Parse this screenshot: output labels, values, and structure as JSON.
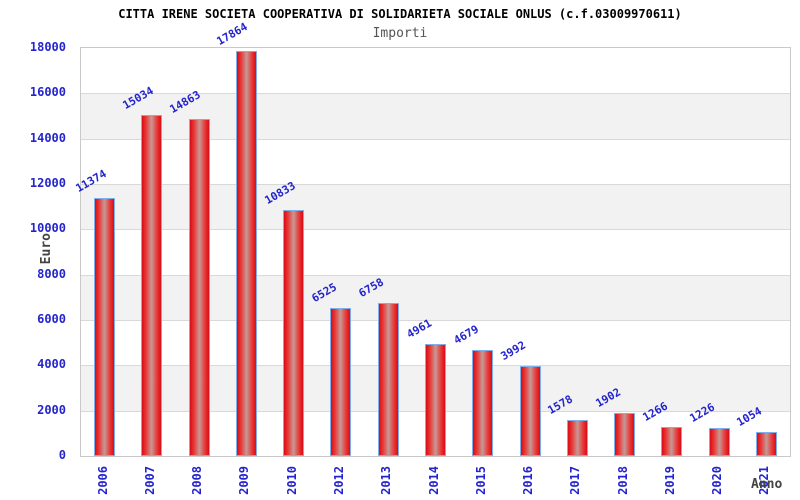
{
  "header": {
    "title": "CITTA IRENE SOCIETA COOPERATIVA DI SOLIDARIETA SOCIALE ONLUS (c.f.03009970611)",
    "subtitle": "Importi"
  },
  "chart_data": {
    "type": "bar",
    "title": "CITTA IRENE SOCIETA COOPERATIVA DI SOLIDARIETA SOCIALE ONLUS (c.f.03009970611)",
    "subtitle": "Importi",
    "xlabel": "Anno",
    "ylabel": "Euro",
    "categories": [
      "2006",
      "2007",
      "2008",
      "2009",
      "2010",
      "2012",
      "2013",
      "2014",
      "2015",
      "2016",
      "2017",
      "2018",
      "2019",
      "2020",
      "2021"
    ],
    "values": [
      11374,
      15034,
      14863,
      17864,
      10833,
      6525,
      6758,
      4961,
      4679,
      3992,
      1578,
      1902,
      1266,
      1226,
      1054
    ],
    "ylim": [
      0,
      18000
    ],
    "ytick_step": 2000,
    "yticks": [
      0,
      2000,
      4000,
      6000,
      8000,
      10000,
      12000,
      14000,
      16000,
      18000
    ],
    "grid": "horizontal gridlines with alternating white/gray bands",
    "legend": "none",
    "colors": {
      "title": "#000000",
      "subtitle": "#555555",
      "axis_title": "#444444",
      "tick_label": "#2424cd",
      "value_label": "#2424cd",
      "bar_fill": "#e32124",
      "bar_highlight": "#c49a97",
      "bar_border": "#7db0ea",
      "band_gray": "#f2f2f2",
      "gridline": "#d9d9d9",
      "plot_border": "#c9c9c9",
      "background": "#ffffff"
    }
  }
}
